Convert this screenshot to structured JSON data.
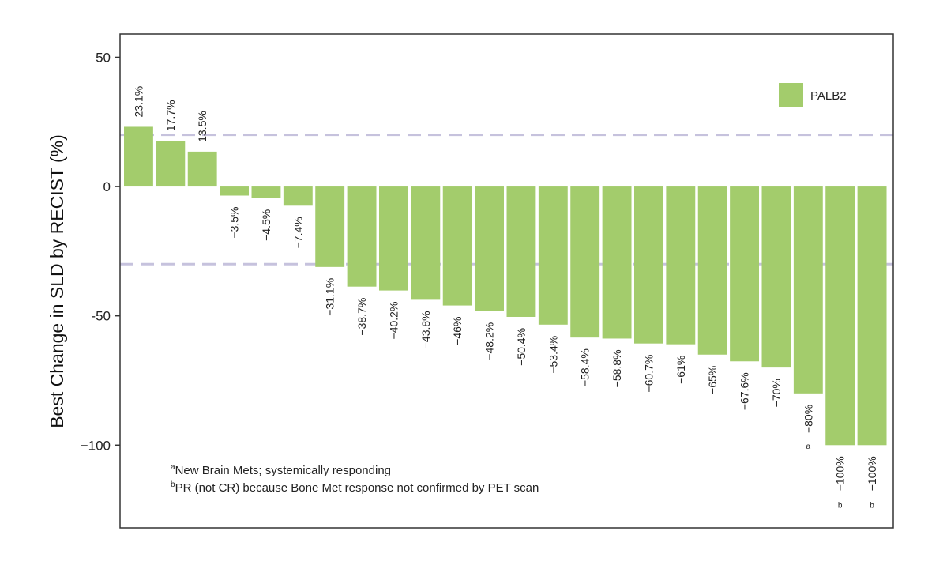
{
  "chart_data": {
    "type": "bar",
    "ylabel": "Best Change in SLD by RECIST (%)",
    "xlabel": "",
    "ylim": [
      -132,
      59
    ],
    "yticks": [
      50,
      0,
      -50,
      -100
    ],
    "ytick_labels": [
      "50",
      "0",
      "-50",
      "−100"
    ],
    "reference_lines": [
      20,
      -30
    ],
    "series": [
      {
        "name": "PALB2",
        "color": "#a3cc6c",
        "values": [
          23.1,
          17.7,
          13.5,
          -3.5,
          -4.5,
          -7.4,
          -31.1,
          -38.7,
          -40.2,
          -43.8,
          -46,
          -48.2,
          -50.4,
          -53.4,
          -58.4,
          -58.8,
          -60.7,
          -61,
          -65,
          -67.6,
          -70,
          -80,
          -100,
          -100
        ],
        "labels": [
          "23.1%",
          "17.7%",
          "13.5%",
          "−3.5%",
          "−4.5%",
          "−7.4%",
          "−31.1%",
          "−38.7%",
          "−40.2%",
          "−43.8%",
          "−46%",
          "−48.2%",
          "−50.4%",
          "−53.4%",
          "−58.4%",
          "−58.8%",
          "−60.7%",
          "−61%",
          "−65%",
          "−67.6%",
          "−70%",
          "−80%",
          "−100%",
          "−100%"
        ],
        "footnote_marks": [
          "",
          "",
          "",
          "",
          "",
          "",
          "",
          "",
          "",
          "",
          "",
          "",
          "",
          "",
          "",
          "",
          "",
          "",
          "",
          "",
          "",
          "a",
          "b",
          "b"
        ]
      }
    ],
    "legend": {
      "position": "top-right",
      "entries": [
        "PALB2"
      ]
    },
    "footnotes": [
      {
        "mark": "a",
        "text": "New Brain Mets; systemically responding"
      },
      {
        "mark": "b",
        "text": "PR (not CR) because Bone Met response not confirmed by PET scan"
      }
    ],
    "grid": false
  },
  "colors": {
    "bar": "#a3cc6c",
    "reference_line": "#c6c2dd",
    "frame": "#333333"
  }
}
